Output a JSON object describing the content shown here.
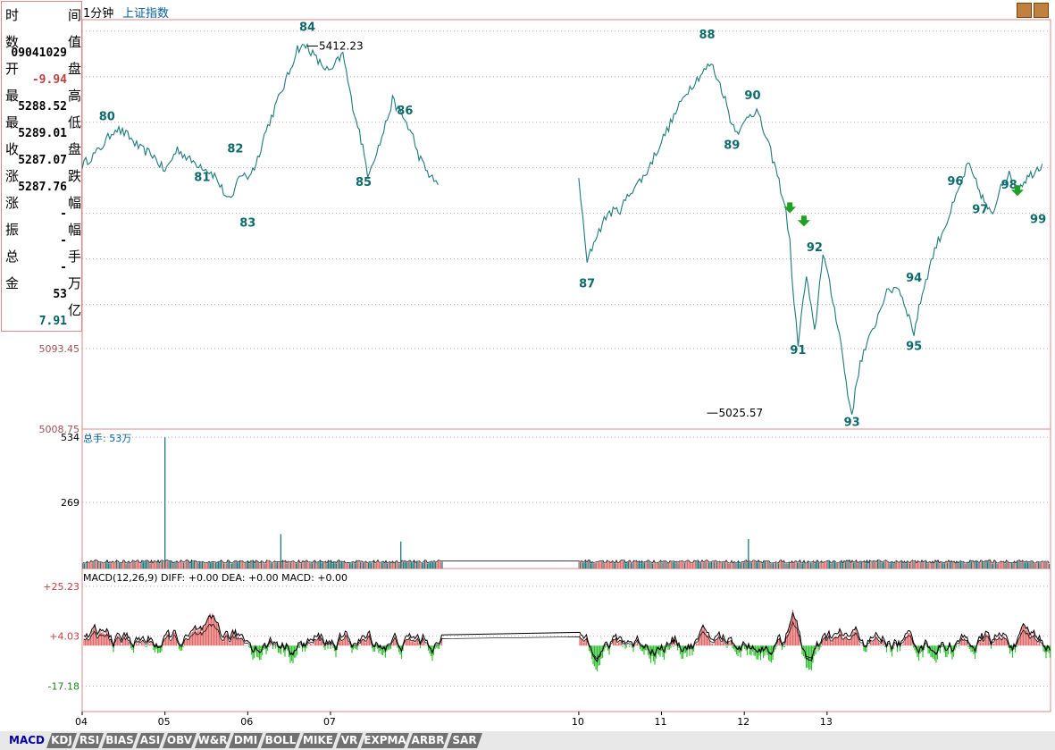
{
  "header": {
    "period": "1分钟",
    "index_name": "上证指数"
  },
  "info_panel": {
    "rows": [
      {
        "label": "时",
        "value": "",
        "unit": "间"
      },
      {
        "label": "数",
        "value": "09041029",
        "unit": "值"
      },
      {
        "label": "开",
        "value": "-9.94",
        "unit": "盘"
      },
      {
        "label": "最",
        "value": "5288.52",
        "unit": "高"
      },
      {
        "label": "最",
        "value": "5289.01",
        "unit": "低"
      },
      {
        "label": "收",
        "value": "5287.07",
        "unit": "盘"
      },
      {
        "label": "涨",
        "value": "5287.76",
        "unit": "跌"
      },
      {
        "label": "涨",
        "value": "-",
        "unit": "幅"
      },
      {
        "label": "振",
        "value": "-",
        "unit": "幅"
      },
      {
        "label": "总",
        "value": "-",
        "unit": "手"
      },
      {
        "label": "金",
        "value": "53",
        "unit": "万"
      },
      {
        "label": "",
        "value": "7.91",
        "unit": "亿"
      }
    ],
    "value_colors": {
      "negative": "#c04040",
      "normal": "#000000",
      "cyan": "#006060"
    }
  },
  "colors": {
    "up": "#e06868",
    "down": "#1e7a7a",
    "macd_neg": "#30c030",
    "line": "#000000",
    "border": "#d88a8a",
    "grid": "#d0a0a0",
    "label_teal": "#0e6b6b",
    "arrow": "#20a020",
    "axis_text": "#000000"
  },
  "chart_data": [
    {
      "type": "line",
      "panel": "price",
      "ylim": [
        5008.75,
        5440
      ],
      "y_ticks": [
        {
          "value": 5093.45,
          "label": "5093.45"
        },
        {
          "value": 5008.75,
          "label": "5008.75"
        }
      ],
      "high_annotation": {
        "label": "5412.23",
        "value": 5412.23,
        "x": 6.72
      },
      "low_annotation": {
        "label": "5025.57",
        "value": 5025.57,
        "x": 11.55
      },
      "series": [
        {
          "values": [
            [
              4.0,
              5287
            ],
            [
              4.2,
              5302
            ],
            [
              4.4,
              5326
            ],
            [
              4.55,
              5318
            ],
            [
              4.7,
              5304
            ],
            [
              4.85,
              5298
            ],
            [
              5.0,
              5280
            ],
            [
              5.15,
              5304
            ],
            [
              5.3,
              5292
            ],
            [
              5.45,
              5286
            ],
            [
              5.6,
              5276
            ],
            [
              5.75,
              5252
            ],
            [
              5.8,
              5248
            ],
            [
              5.85,
              5262
            ],
            [
              5.9,
              5278
            ],
            [
              6.0,
              5274
            ],
            [
              6.1,
              5288
            ],
            [
              6.2,
              5318
            ],
            [
              6.35,
              5352
            ],
            [
              6.5,
              5384
            ],
            [
              6.6,
              5410
            ],
            [
              6.72,
              5412
            ],
            [
              6.85,
              5396
            ],
            [
              7.0,
              5384
            ],
            [
              7.05,
              5392
            ],
            [
              7.15,
              5404
            ],
            [
              7.25,
              5356
            ],
            [
              7.35,
              5322
            ],
            [
              7.45,
              5278
            ],
            [
              7.6,
              5310
            ],
            [
              7.75,
              5355
            ],
            [
              7.9,
              5334
            ],
            [
              8.0,
              5316
            ],
            [
              8.05,
              5300
            ],
            [
              8.15,
              5282
            ],
            [
              8.25,
              5270
            ],
            [
              8.3,
              5266
            ],
            [
              10.0,
              5275
            ],
            [
              10.05,
              5228
            ],
            [
              10.1,
              5184
            ],
            [
              10.2,
              5210
            ],
            [
              10.35,
              5236
            ],
            [
              10.5,
              5240
            ],
            [
              10.65,
              5262
            ],
            [
              10.8,
              5276
            ],
            [
              11.0,
              5312
            ],
            [
              11.15,
              5338
            ],
            [
              11.3,
              5364
            ],
            [
              11.45,
              5380
            ],
            [
              11.6,
              5394
            ],
            [
              11.75,
              5362
            ],
            [
              11.85,
              5330
            ],
            [
              11.95,
              5322
            ],
            [
              12.05,
              5340
            ],
            [
              12.15,
              5344
            ],
            [
              12.3,
              5306
            ],
            [
              12.4,
              5276
            ],
            [
              12.5,
              5240
            ],
            [
              12.55,
              5205
            ],
            [
              12.6,
              5140
            ],
            [
              12.65,
              5100
            ],
            [
              12.75,
              5170
            ],
            [
              12.85,
              5110
            ],
            [
              12.95,
              5196
            ],
            [
              13.05,
              5152
            ],
            [
              13.15,
              5110
            ],
            [
              13.25,
              5045
            ],
            [
              13.3,
              5025
            ],
            [
              13.4,
              5080
            ],
            [
              13.55,
              5112
            ],
            [
              13.7,
              5150
            ],
            [
              13.85,
              5160
            ],
            [
              13.95,
              5138
            ],
            [
              14.05,
              5110
            ],
            [
              14.15,
              5152
            ],
            [
              14.3,
              5198
            ],
            [
              14.45,
              5228
            ],
            [
              14.6,
              5262
            ],
            [
              14.7,
              5288
            ],
            [
              14.8,
              5268
            ],
            [
              14.9,
              5248
            ],
            [
              15.0,
              5232
            ],
            [
              15.1,
              5268
            ],
            [
              15.2,
              5276
            ],
            [
              15.3,
              5262
            ],
            [
              15.4,
              5272
            ],
            [
              15.5,
              5280
            ],
            [
              15.6,
              5288
            ]
          ]
        }
      ],
      "wave_labels": [
        {
          "label": "80",
          "x": 4.3,
          "value": 5334
        },
        {
          "label": "81",
          "x": 5.45,
          "value": 5270
        },
        {
          "label": "82",
          "x": 5.85,
          "value": 5300
        },
        {
          "label": "83",
          "x": 6.0,
          "value": 5222
        },
        {
          "label": "84",
          "x": 6.72,
          "value": 5428
        },
        {
          "label": "85",
          "x": 7.4,
          "value": 5265
        },
        {
          "label": "86",
          "x": 7.9,
          "value": 5340
        },
        {
          "label": "87",
          "x": 10.1,
          "value": 5158
        },
        {
          "label": "88",
          "x": 11.55,
          "value": 5420
        },
        {
          "label": "89",
          "x": 11.85,
          "value": 5304
        },
        {
          "label": "90",
          "x": 12.1,
          "value": 5356
        },
        {
          "label": "91",
          "x": 12.65,
          "value": 5088
        },
        {
          "label": "92",
          "x": 12.85,
          "value": 5196
        },
        {
          "label": "93",
          "x": 13.3,
          "value": 5012
        },
        {
          "label": "94",
          "x": 14.05,
          "value": 5164
        },
        {
          "label": "95",
          "x": 14.05,
          "value": 5092
        },
        {
          "label": "96",
          "x": 14.55,
          "value": 5266
        },
        {
          "label": "97",
          "x": 14.85,
          "value": 5236
        },
        {
          "label": "98",
          "x": 15.2,
          "value": 5262
        },
        {
          "label": "99",
          "x": 15.55,
          "value": 5226
        }
      ],
      "arrows": [
        {
          "x": 12.55,
          "value": 5240
        },
        {
          "x": 12.72,
          "value": 5226
        },
        {
          "x": 15.3,
          "value": 5258
        }
      ]
    },
    {
      "type": "bar",
      "panel": "volume",
      "title": "总手: 53万",
      "ylim": [
        0,
        560
      ],
      "y_ticks": [
        {
          "value": 534,
          "label": "534"
        },
        {
          "value": 269,
          "label": "269"
        }
      ],
      "spikes": [
        {
          "x": 5.0,
          "value": 534
        },
        {
          "x": 6.4,
          "value": 140
        },
        {
          "x": 7.85,
          "value": 110
        },
        {
          "x": 12.05,
          "value": 120
        }
      ]
    },
    {
      "type": "bar",
      "panel": "macd",
      "title": "MACD(12,26,9) DIFF: +0.00 DEA: +0.00 MACD: +0.00",
      "ylim": [
        -28,
        32
      ],
      "y_ticks": [
        {
          "value": 25.23,
          "label": "+25.23",
          "color": "#c04040"
        },
        {
          "value": 4.03,
          "label": "+4.03",
          "color": "#c04040"
        },
        {
          "value": -17.18,
          "label": "-17.18",
          "color": "#208020"
        }
      ]
    }
  ],
  "x_axis": {
    "labels": [
      "04",
      "05",
      "06",
      "07",
      "10",
      "11",
      "12",
      "13"
    ],
    "positions": [
      4,
      5,
      6,
      7,
      10,
      11,
      12,
      13
    ],
    "xlim": [
      4,
      15.7
    ]
  },
  "tabs": [
    {
      "label": "MACD",
      "active": true
    },
    {
      "label": "KDJ"
    },
    {
      "label": "RSI"
    },
    {
      "label": "BIAS"
    },
    {
      "label": "ASI"
    },
    {
      "label": "OBV"
    },
    {
      "label": "W&R"
    },
    {
      "label": "DMI"
    },
    {
      "label": "BOLL"
    },
    {
      "label": "MIKE"
    },
    {
      "label": "VR"
    },
    {
      "label": "EXPMA"
    },
    {
      "label": "ARBR"
    },
    {
      "label": "SAR"
    }
  ]
}
